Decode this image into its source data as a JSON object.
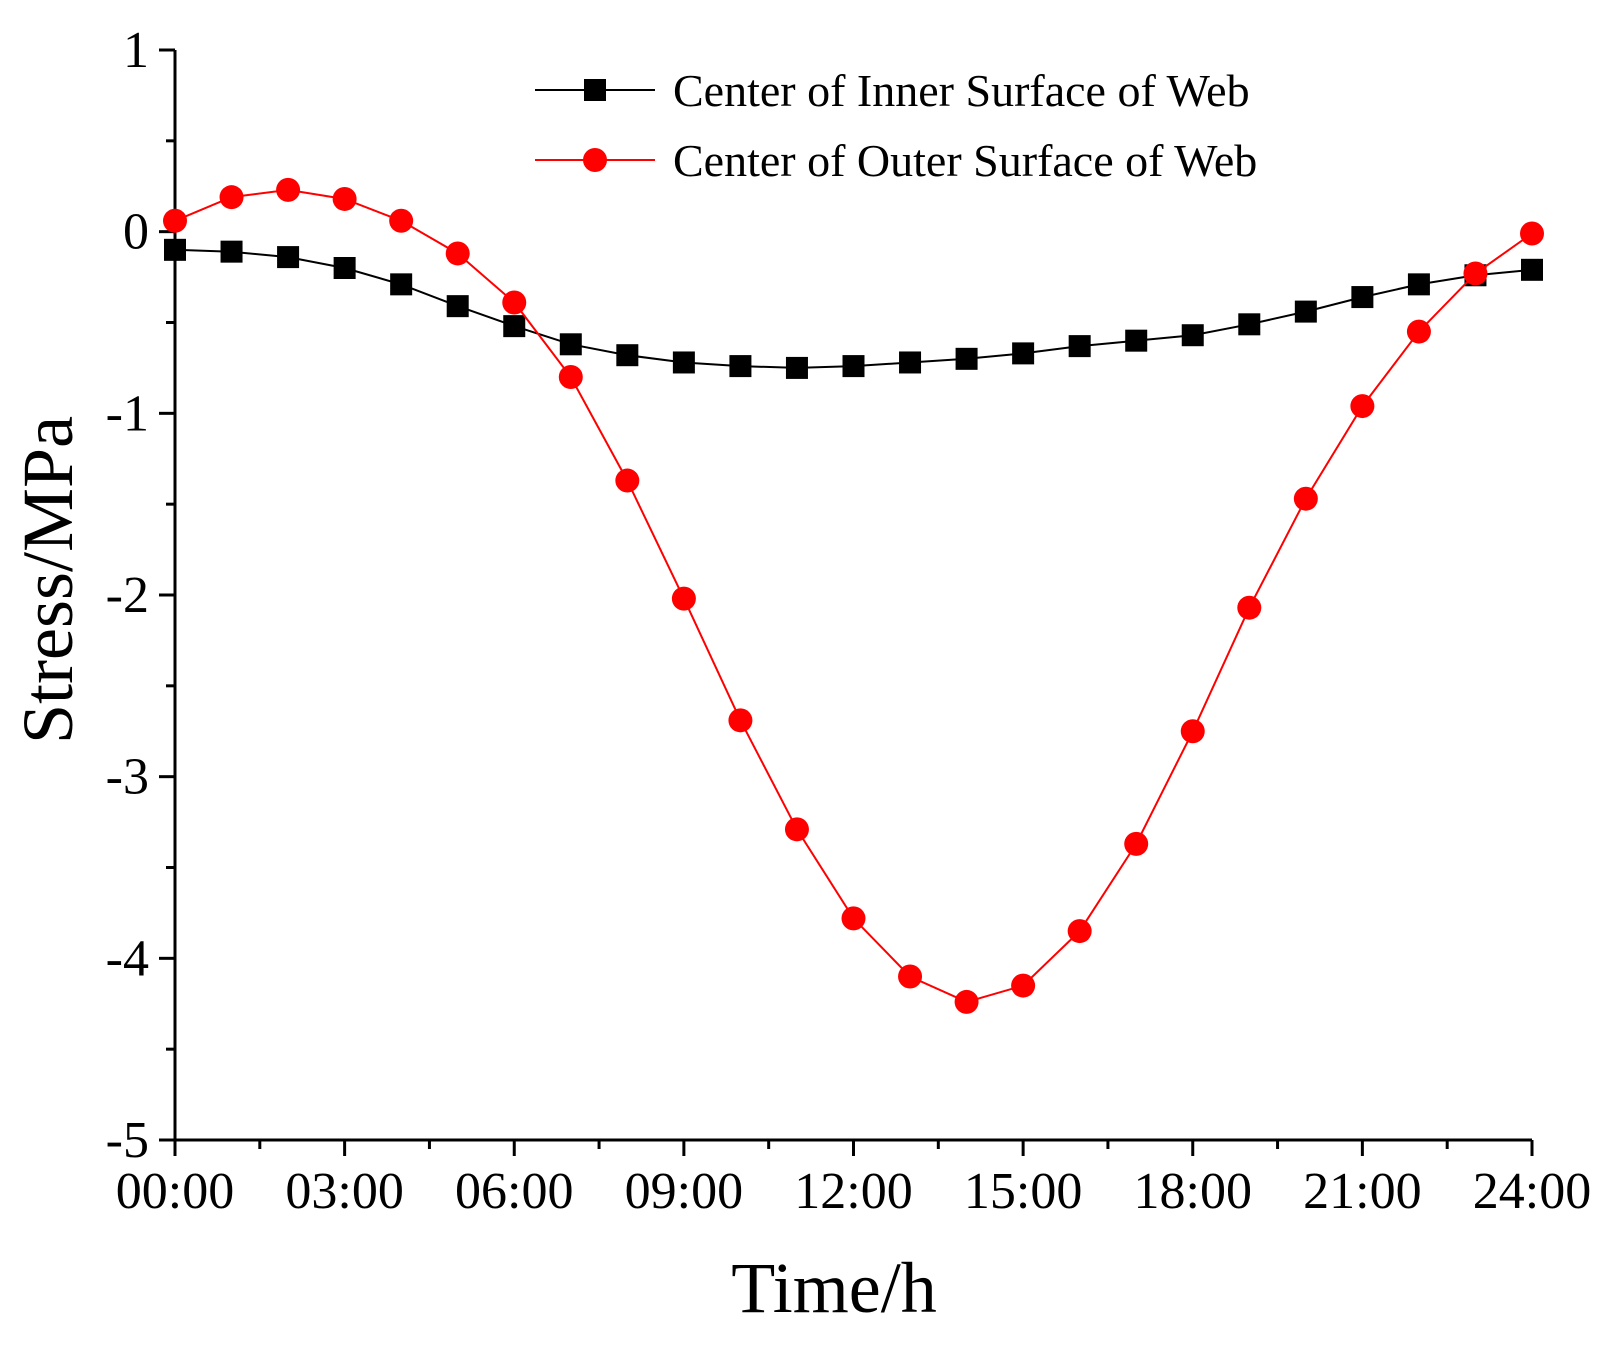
{
  "chart_data": {
    "type": "line",
    "title": "",
    "xlabel": "Time/h",
    "ylabel": "Stress/MPa",
    "xlim": [
      0,
      24
    ],
    "ylim": [
      -5,
      1
    ],
    "x_tick_values": [
      0,
      3,
      6,
      9,
      12,
      15,
      18,
      21,
      24
    ],
    "x_tick_labels": [
      "00:00",
      "03:00",
      "06:00",
      "09:00",
      "12:00",
      "15:00",
      "18:00",
      "21:00",
      "24:00"
    ],
    "y_tick_values": [
      1,
      0,
      -1,
      -2,
      -3,
      -4,
      -5
    ],
    "y_tick_labels": [
      "1",
      "0",
      "-1",
      "-2",
      "-3",
      "-4",
      "-5"
    ],
    "legend_position": "top-right",
    "x": [
      0,
      1,
      2,
      3,
      4,
      5,
      6,
      7,
      8,
      9,
      10,
      11,
      12,
      13,
      14,
      15,
      16,
      17,
      18,
      19,
      20,
      21,
      22,
      23,
      24
    ],
    "series": [
      {
        "name": "Center of Inner Surface of Web",
        "color": "#000000",
        "marker": "square",
        "values": [
          -0.1,
          -0.11,
          -0.14,
          -0.2,
          -0.29,
          -0.41,
          -0.52,
          -0.62,
          -0.68,
          -0.72,
          -0.74,
          -0.75,
          -0.74,
          -0.72,
          -0.7,
          -0.67,
          -0.63,
          -0.6,
          -0.57,
          -0.51,
          -0.44,
          -0.36,
          -0.29,
          -0.24,
          -0.21
        ]
      },
      {
        "name": "Center of Outer Surface of Web",
        "color": "#ff0000",
        "marker": "circle",
        "values": [
          0.06,
          0.19,
          0.23,
          0.18,
          0.06,
          -0.12,
          -0.39,
          -0.8,
          -1.37,
          -2.02,
          -2.69,
          -3.29,
          -3.78,
          -4.1,
          -4.24,
          -4.15,
          -3.85,
          -3.37,
          -2.75,
          -2.07,
          -1.47,
          -0.96,
          -0.55,
          -0.23,
          -0.01
        ]
      }
    ]
  }
}
